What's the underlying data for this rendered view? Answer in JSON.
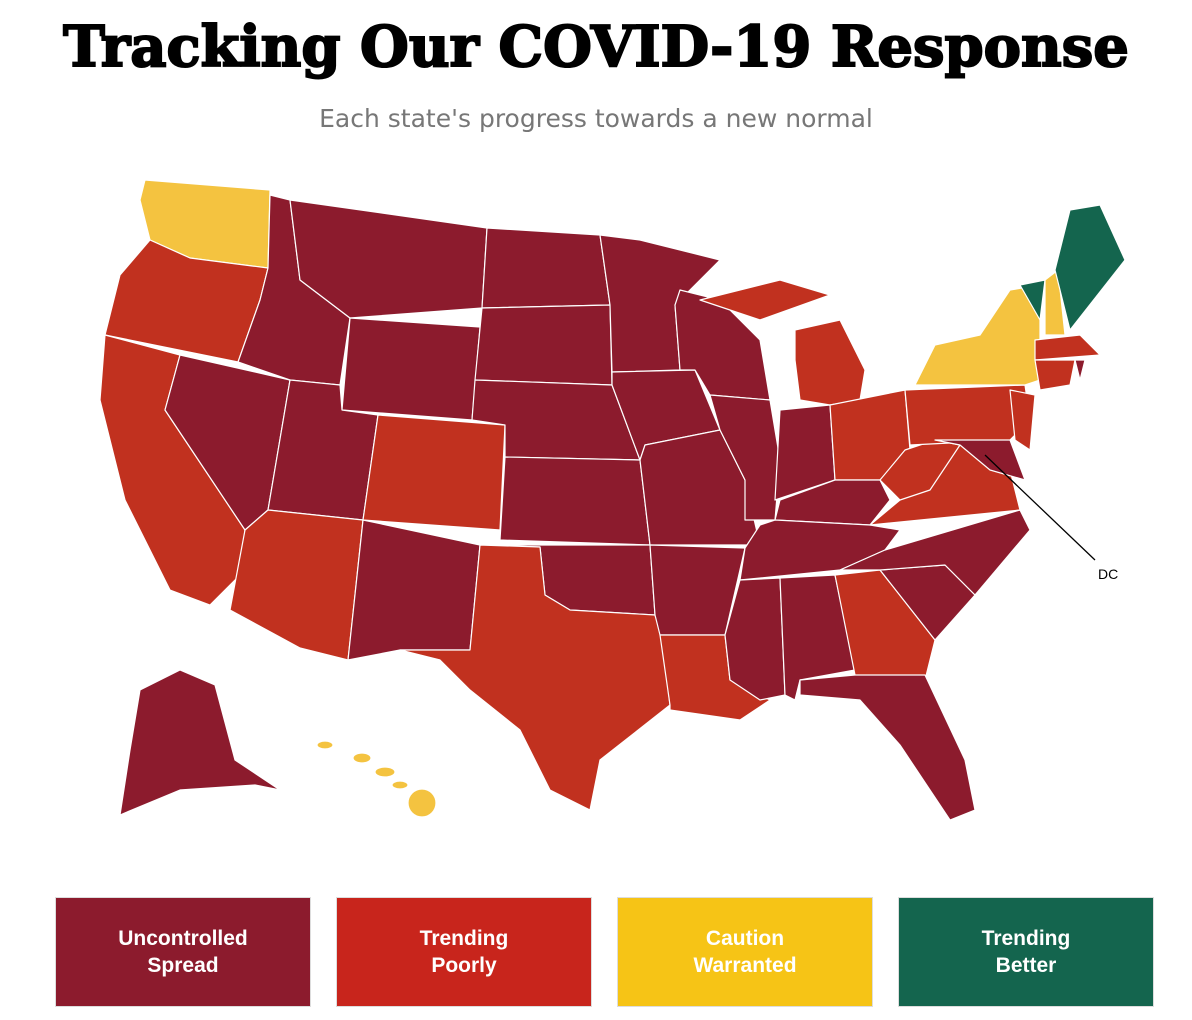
{
  "header": {
    "title": "Tracking Our COVID-19 Response",
    "subtitle": "Each state's progress towards a new normal"
  },
  "map": {
    "annotation": "DC"
  },
  "legend": {
    "items": [
      {
        "lines": [
          "Uncontrolled",
          "Spread"
        ]
      },
      {
        "lines": [
          "Trending",
          "Poorly"
        ]
      },
      {
        "lines": [
          "Caution",
          "Warranted"
        ]
      },
      {
        "lines": [
          "Trending",
          "Better"
        ]
      }
    ]
  }
}
